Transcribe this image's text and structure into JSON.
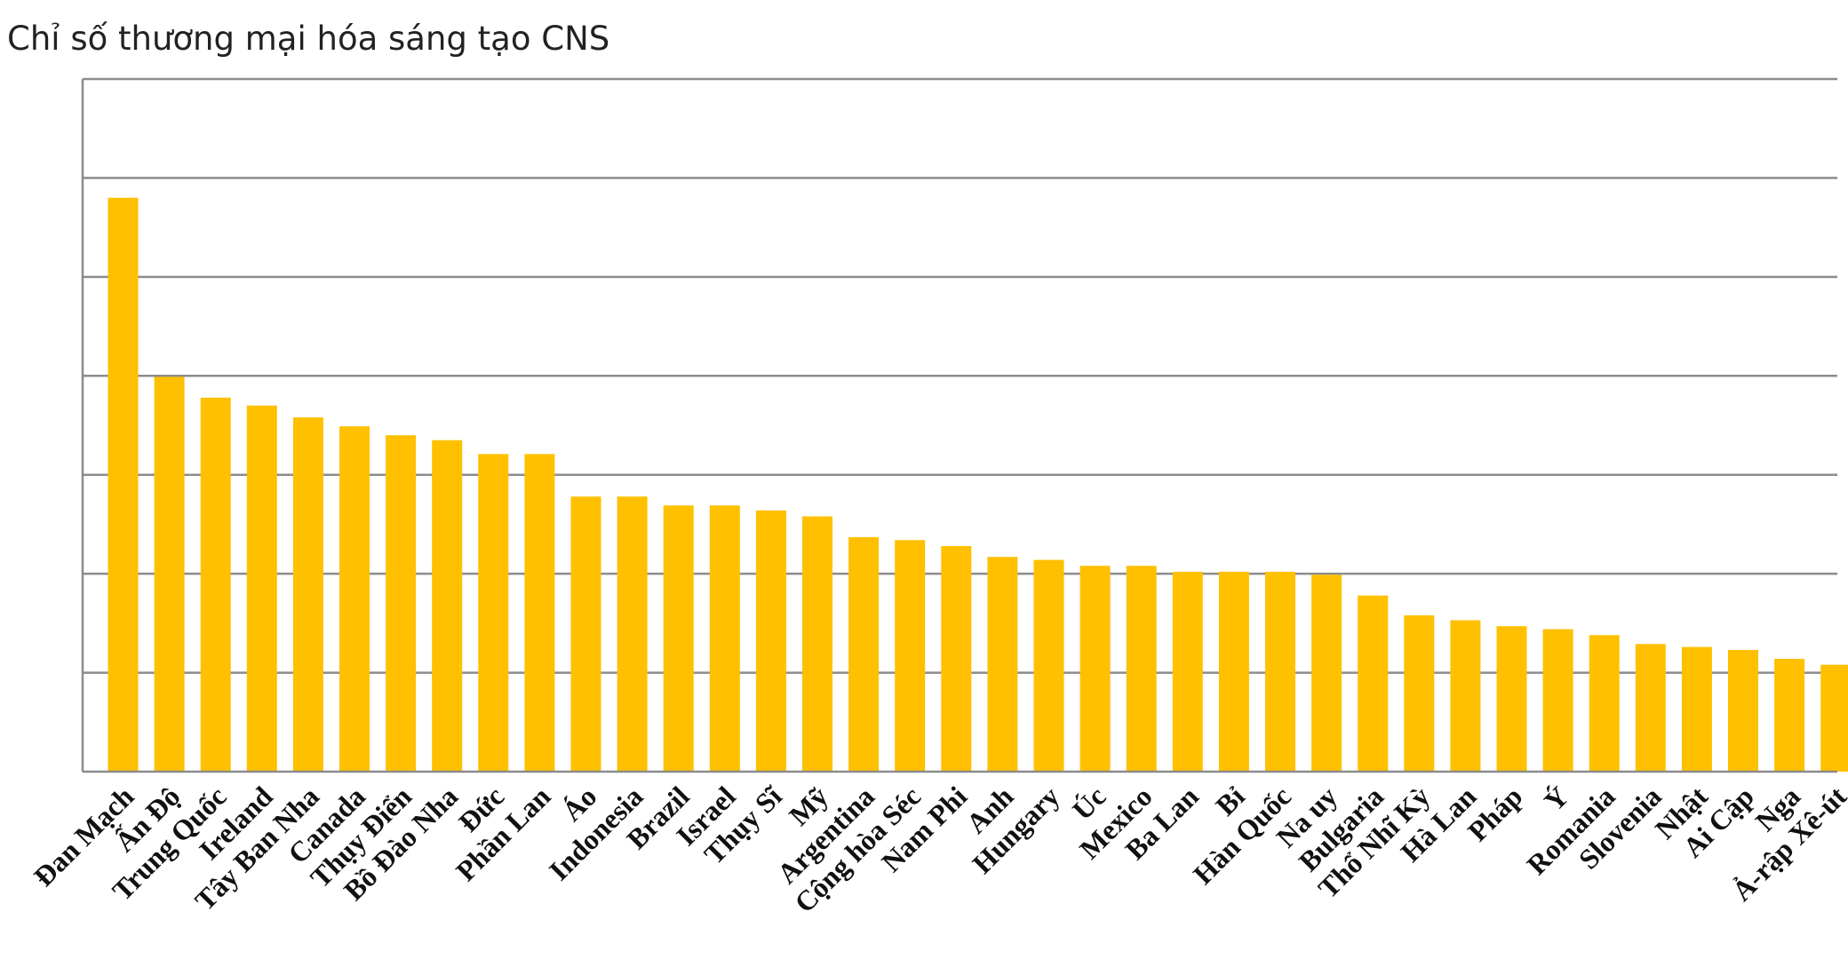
{
  "chart_data": {
    "type": "bar",
    "title": "Chỉ số thương mại hóa sáng tạo CNS",
    "xlabel": "",
    "ylabel": "",
    "ylim": [
      0,
      7
    ],
    "grid": true,
    "bar_color": "#FFC000",
    "grid_color": "#8c8c8c",
    "categories": [
      "Đan Mạch",
      "Ấn Độ",
      "Trung Quốc",
      "Ireland",
      "Tây Ban Nha",
      "Canada",
      "Thụy Điển",
      "Bồ Đào Nha",
      "Đức",
      "Phần Lan",
      "Áo",
      "Indonesia",
      "Brazil",
      "Israel",
      "Thụy Sĩ",
      "Mỹ",
      "Argentina",
      "Cộng hòa Séc",
      "Nam Phi",
      "Anh",
      "Hungary",
      "Úc",
      "Mexico",
      "Ba Lan",
      "Bỉ",
      "Hàn Quốc",
      "Na uy",
      "Bulgaria",
      "Thổ Nhĩ Kỳ",
      "Hà Lan",
      "Pháp",
      "Ý",
      "Romania",
      "Slovenia",
      "Nhật",
      "Ai Cập",
      "Nga",
      "Ả-rập Xê-út"
    ],
    "values": [
      5.8,
      3.99,
      3.78,
      3.7,
      3.58,
      3.49,
      3.4,
      3.35,
      3.21,
      3.21,
      2.78,
      2.78,
      2.69,
      2.69,
      2.64,
      2.58,
      2.37,
      2.34,
      2.28,
      2.17,
      2.14,
      2.08,
      2.08,
      2.02,
      2.02,
      2.02,
      1.99,
      1.78,
      1.58,
      1.53,
      1.47,
      1.44,
      1.38,
      1.29,
      1.26,
      1.23,
      1.14,
      1.08
    ]
  }
}
